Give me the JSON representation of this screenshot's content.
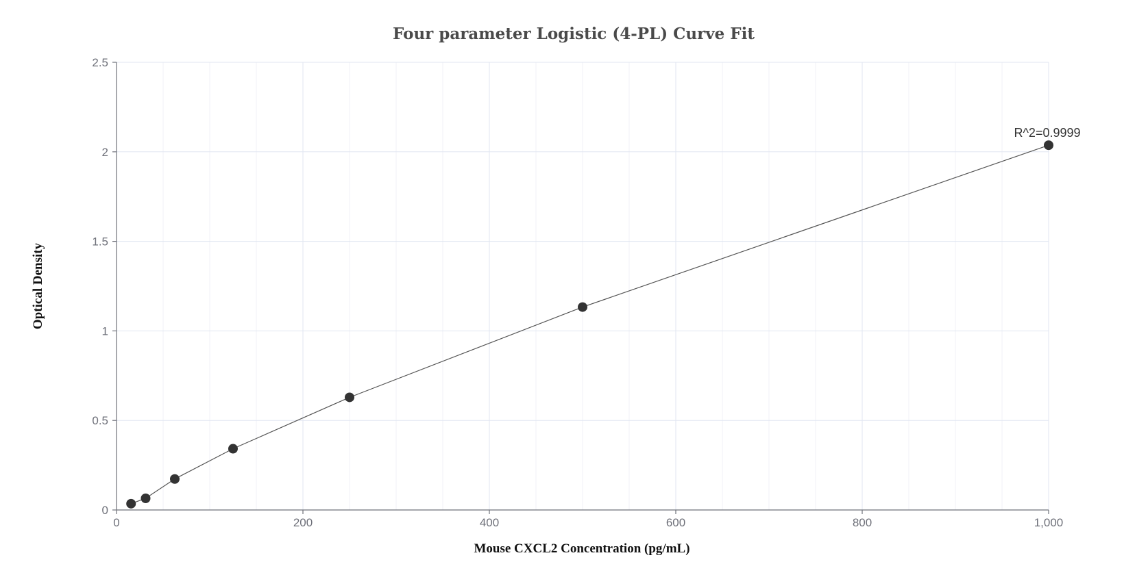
{
  "chart_data": {
    "type": "scatter",
    "title": "Four parameter Logistic (4-PL) Curve Fit",
    "xlabel": "Mouse CXCL2 Concentration (pg/mL)",
    "ylabel": "Optical Density",
    "xlim": [
      0,
      1000
    ],
    "ylim": [
      0,
      2.5
    ],
    "xticks": [
      0,
      200,
      400,
      600,
      800,
      1000
    ],
    "xtick_labels": [
      "0",
      "200",
      "400",
      "600",
      "800",
      "1,000"
    ],
    "yticks": [
      0,
      0.5,
      1,
      1.5,
      2,
      2.5
    ],
    "ytick_labels": [
      "0",
      "0.5",
      "1",
      "1.5",
      "2",
      "2.5"
    ],
    "grid": true,
    "series": [
      {
        "points": [
          {
            "x": 15.6,
            "y": 0.035
          },
          {
            "x": 31.25,
            "y": 0.065
          },
          {
            "x": 62.5,
            "y": 0.173
          },
          {
            "x": 125,
            "y": 0.342
          },
          {
            "x": 250,
            "y": 0.629
          },
          {
            "x": 500,
            "y": 1.133
          },
          {
            "x": 1000,
            "y": 2.037
          }
        ],
        "fit_line": true
      }
    ],
    "annotation": {
      "text": "R^2=0.9999"
    }
  }
}
